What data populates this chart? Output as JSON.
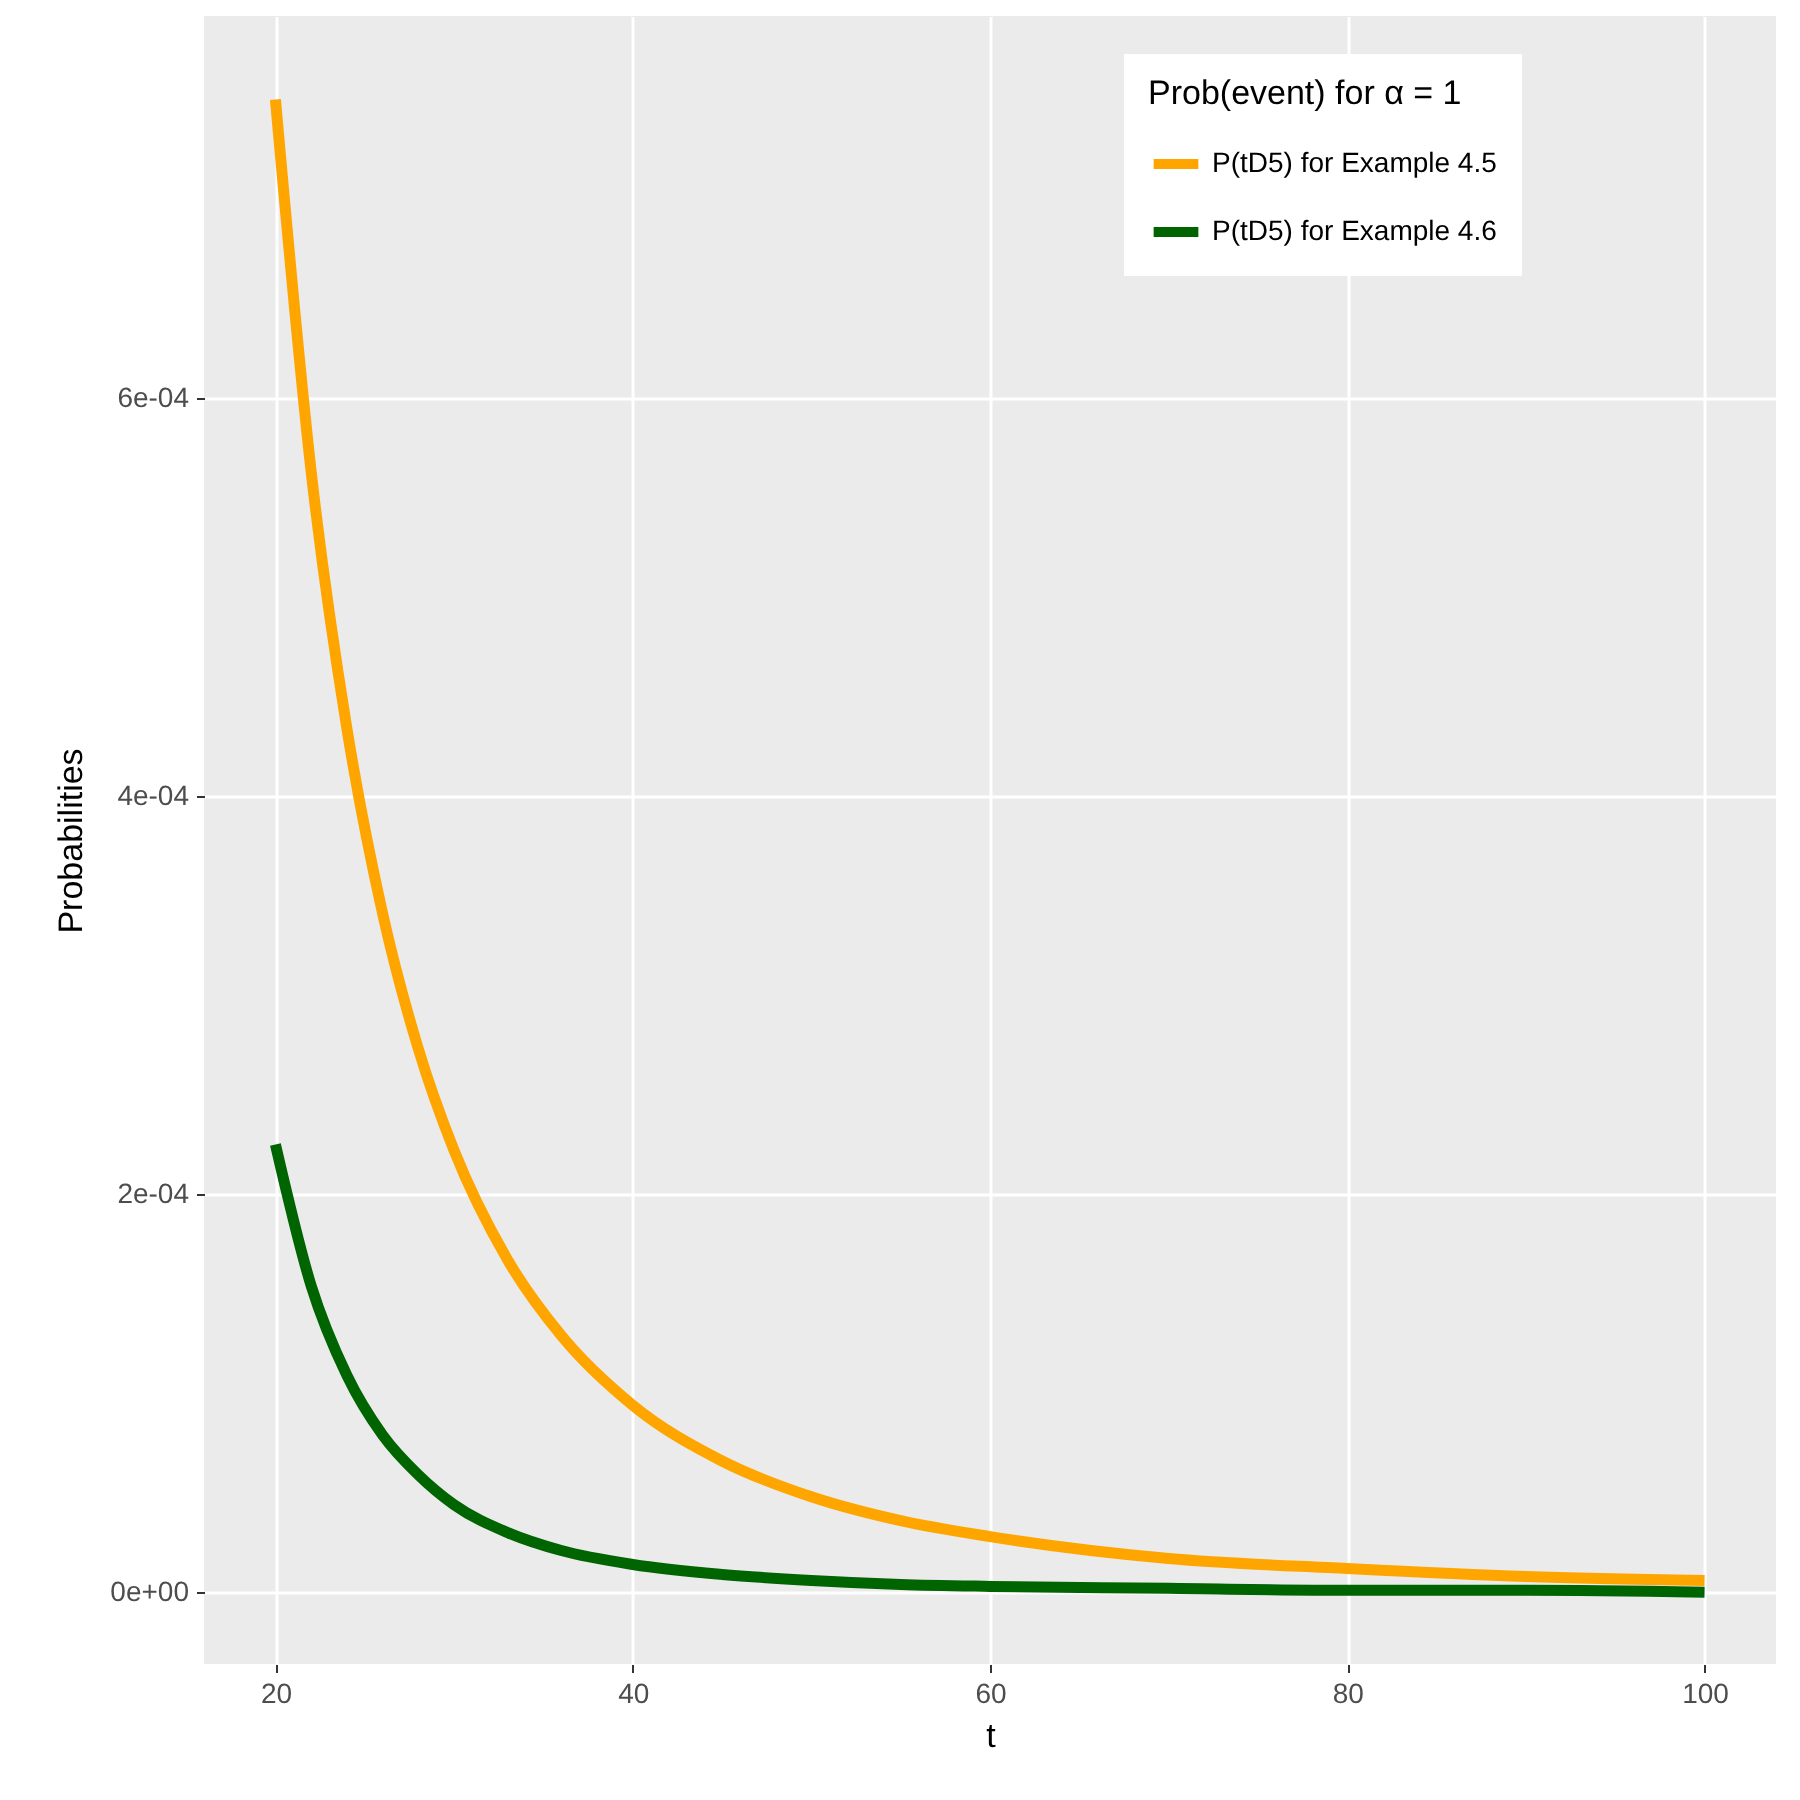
{
  "chart_data": {
    "type": "line",
    "xlabel": "t",
    "ylabel": "Probabilities",
    "legend_title": "Prob(event) for α = 1",
    "x": [
      20,
      22,
      24,
      26,
      28,
      30,
      33,
      36,
      40,
      45,
      50,
      55,
      60,
      70,
      80,
      90,
      100
    ],
    "series": [
      {
        "name": "P(tD5) for Example 4.5",
        "color": "#ffa500",
        "values": [
          0.00075,
          0.000563,
          0.000434,
          0.000341,
          0.000273,
          0.000222,
          0.000167,
          0.000129,
          9.4e-05,
          6.6e-05,
          4.8e-05,
          3.6e-05,
          2.8e-05,
          1.7e-05,
          1.2e-05,
          8e-06,
          6e-06
        ]
      },
      {
        "name": "P(tD5) for Example 4.6",
        "color": "#006400",
        "values": [
          0.000225,
          0.000154,
          0.000109,
          7.9e-05,
          5.9e-05,
          4.4e-05,
          3e-05,
          2.1e-05,
          1.4e-05,
          9e-06,
          6e-06,
          4e-06,
          3e-06,
          2e-06,
          1e-06,
          1e-06,
          0
        ]
      }
    ],
    "xlim": [
      16,
      104
    ],
    "xticks": [
      20,
      40,
      60,
      80,
      100
    ],
    "ylim": [
      -3.6e-05,
      0.000792
    ],
    "yticks": [
      {
        "value": 0,
        "label": "0e+00"
      },
      {
        "value": 0.0002,
        "label": "2e-04"
      },
      {
        "value": 0.0004,
        "label": "4e-04"
      },
      {
        "value": 0.0006,
        "label": "6e-04"
      }
    ],
    "grid": true,
    "legend": "top right",
    "line_style": "solid"
  }
}
